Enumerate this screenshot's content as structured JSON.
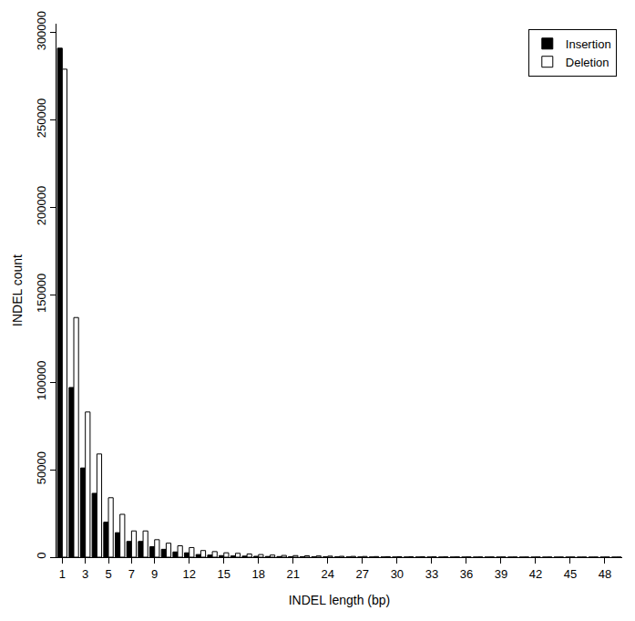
{
  "chart_data": {
    "type": "bar",
    "x_label": "INDEL length (bp)",
    "y_label": "INDEL count",
    "categories": [
      "1",
      null,
      "3",
      null,
      "5",
      null,
      "7",
      null,
      "9",
      null,
      null,
      "12",
      null,
      null,
      "15",
      null,
      null,
      "18",
      null,
      null,
      "21",
      null,
      null,
      "24",
      null,
      null,
      "27",
      null,
      null,
      "30",
      null,
      null,
      "33",
      null,
      null,
      "36",
      null,
      null,
      "39",
      null,
      null,
      "42",
      null,
      null,
      "45",
      null,
      null,
      "48",
      null
    ],
    "series": [
      {
        "name": "Insertion",
        "color": "#000000",
        "values": [
          291000,
          97000,
          51000,
          36500,
          20000,
          14000,
          9000,
          9000,
          6000,
          4500,
          3000,
          2500,
          1500,
          1200,
          900,
          700,
          600,
          500,
          400,
          350,
          300,
          250,
          200,
          180,
          150,
          120,
          100,
          90,
          80,
          70,
          60,
          50,
          45,
          40,
          35,
          30,
          28,
          25,
          22,
          20,
          18,
          16,
          15,
          14,
          12,
          11,
          10,
          9,
          8
        ]
      },
      {
        "name": "Deletion",
        "color": "#ffffff",
        "values": [
          279000,
          137000,
          83000,
          59000,
          34000,
          24500,
          15000,
          15000,
          10000,
          8000,
          6500,
          5500,
          3800,
          3200,
          2500,
          2200,
          1800,
          1500,
          1200,
          1000,
          900,
          800,
          700,
          600,
          500,
          450,
          400,
          350,
          300,
          280,
          250,
          220,
          200,
          180,
          160,
          140,
          130,
          120,
          110,
          100,
          90,
          85,
          80,
          75,
          70,
          65,
          60,
          55,
          50
        ]
      }
    ],
    "ylim": [
      0,
      305000
    ],
    "yticks": [
      0,
      50000,
      100000,
      150000,
      200000,
      250000,
      300000
    ],
    "grid": false,
    "legend": "top right"
  }
}
